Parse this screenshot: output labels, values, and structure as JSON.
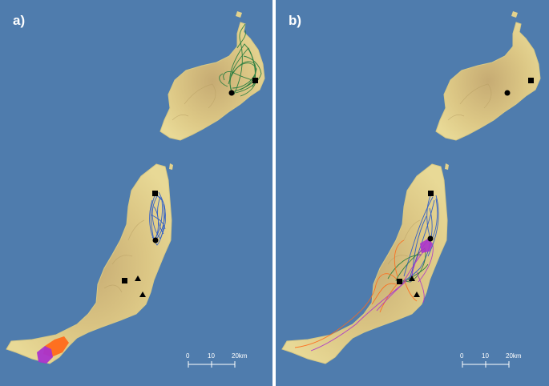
{
  "panels": [
    {
      "label": "a)"
    },
    {
      "label": "b)"
    }
  ],
  "scalebar": {
    "ticks": [
      "0",
      "10",
      "20km"
    ]
  },
  "colors": {
    "sea": "#4f7cad",
    "land": "#e3d28d",
    "relief": "#c9b27a",
    "track_green": "#1f7a3c",
    "track_blue": "#2255cc",
    "track_orange": "#ff6a1a",
    "track_purple": "#aa33cc",
    "track_magenta": "#cc2299"
  },
  "marker_shapes": [
    "square",
    "circle",
    "triangle"
  ]
}
